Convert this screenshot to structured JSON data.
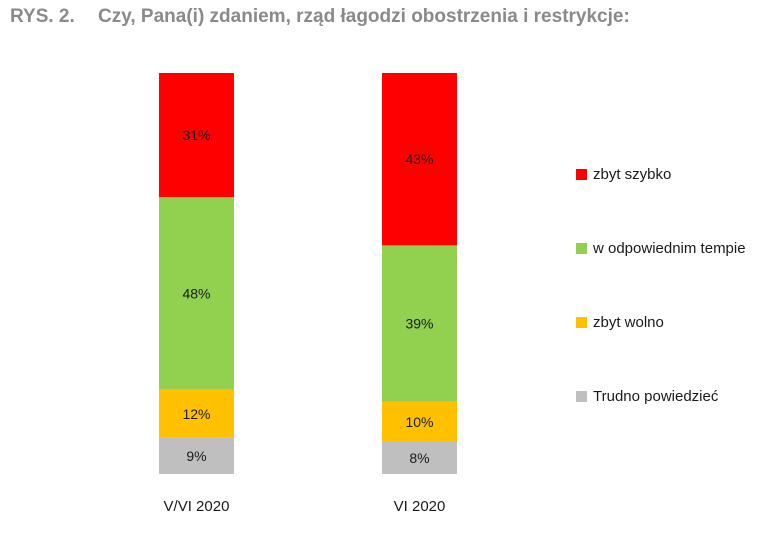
{
  "figure": {
    "number_label": "RYS. 2.",
    "title": "Czy, Pana(i) zdaniem, rząd łagodzi obostrzenia i restrykcje:"
  },
  "chart_data": {
    "type": "bar",
    "stacked": true,
    "orientation": "vertical",
    "categories": [
      "V/VI 2020",
      "VI 2020"
    ],
    "series": [
      {
        "name": "zbyt szybko",
        "color": "#ff0000",
        "values": [
          31,
          43
        ],
        "labels": [
          "31%",
          "43%"
        ]
      },
      {
        "name": "w odpowiednim tempie",
        "color": "#92d050",
        "values": [
          48,
          39
        ],
        "labels": [
          "48%",
          "39%"
        ]
      },
      {
        "name": "zbyt wolno",
        "color": "#ffc000",
        "values": [
          12,
          10
        ],
        "labels": [
          "12%",
          "10%"
        ]
      },
      {
        "name": "Trudno powiedzieć",
        "color": "#bfbfbf",
        "values": [
          9,
          8
        ],
        "labels": [
          "9%",
          "8%"
        ]
      }
    ],
    "ylim": [
      0,
      100
    ],
    "grid": false,
    "legend": "right",
    "xlabel": "",
    "ylabel": ""
  }
}
